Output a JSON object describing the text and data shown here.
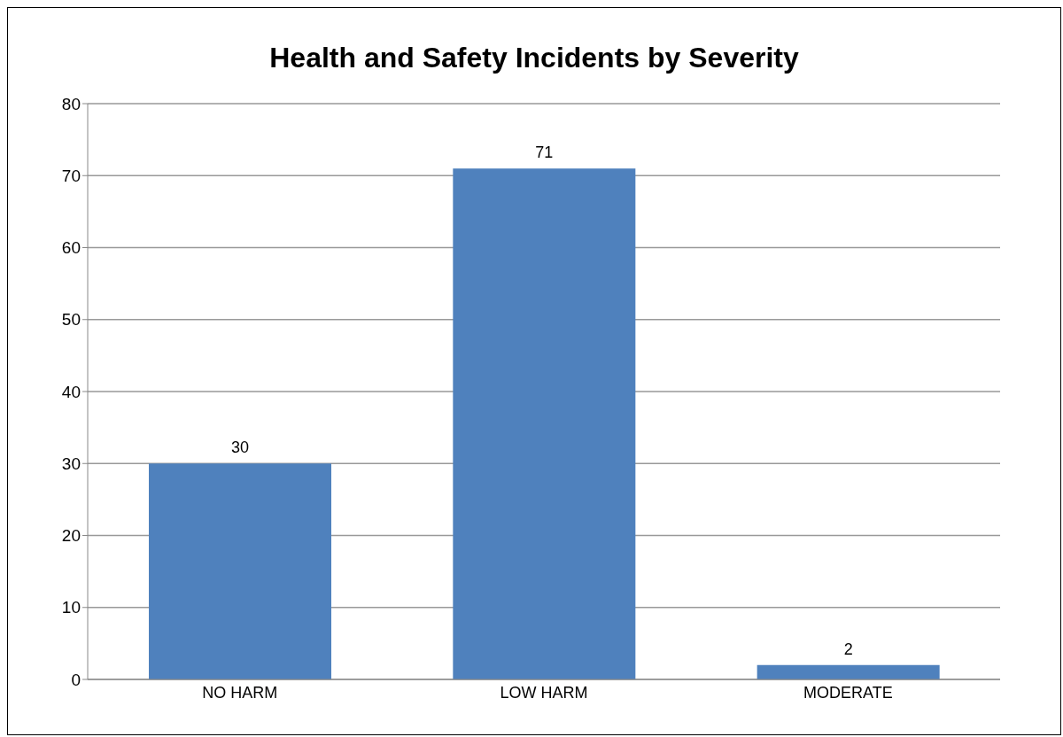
{
  "chart_data": {
    "type": "bar",
    "title": "Health and Safety Incidents by Severity",
    "categories": [
      "NO HARM",
      "LOW HARM",
      "MODERATE"
    ],
    "values": [
      30,
      71,
      2
    ],
    "color": "#4f81bd",
    "ylim": [
      0,
      80
    ],
    "yticks": [
      0,
      10,
      20,
      30,
      40,
      50,
      60,
      70,
      80
    ],
    "grid": "y",
    "data_labels": true
  }
}
